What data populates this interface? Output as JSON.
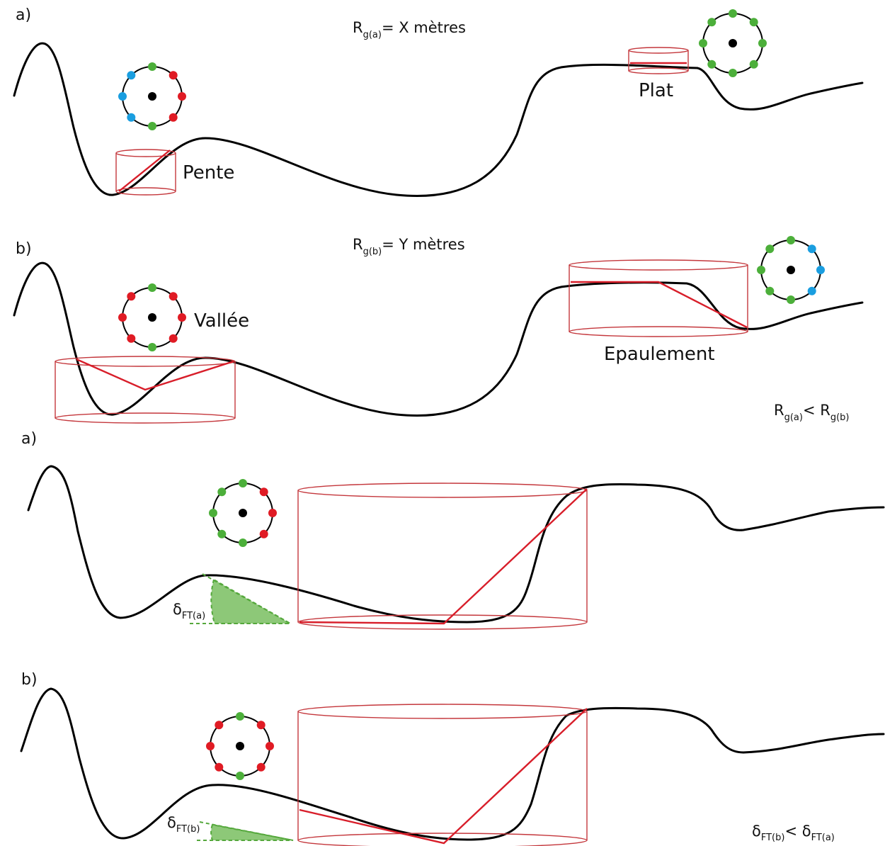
{
  "panel_labels": {
    "p1": "a)",
    "p2": "b)",
    "p3": "a)",
    "p4": "b)"
  },
  "equations": {
    "rga_main": "R",
    "rga_sub": "g(a)",
    "rga_rest": "= X mètres",
    "rgb_main": "R",
    "rgb_sub": "g(b)",
    "rgb_rest": "= Y mètres",
    "cmp_r1": "R",
    "cmp_s1": "g(a)",
    "cmp_op": "< R",
    "cmp_s2": "g(b)",
    "delta_a_main": "δ",
    "delta_a_sub": "FT(a)",
    "delta_b_main": "δ",
    "delta_b_sub": "FT(b)",
    "cmp_d1": "δ",
    "cmp_ds1": "FT(b)",
    "cmp_dop": "< δ",
    "cmp_ds2": "FT(a)"
  },
  "landform_labels": {
    "pente": "Pente",
    "plat": "Plat",
    "vallee": "Vallée",
    "epaulement": "Epaulement"
  },
  "colors": {
    "higher": "#e01b24",
    "equal": "#4caf3a",
    "lower": "#1a9ee0",
    "cylinder": "#c4373c",
    "angle": "#8dc878"
  },
  "neighbor_patterns": {
    "pente": [
      "equal",
      "higher",
      "higher",
      "higher",
      "equal",
      "lower",
      "lower",
      "lower"
    ],
    "plat": [
      "equal",
      "equal",
      "equal",
      "equal",
      "equal",
      "equal",
      "equal",
      "equal"
    ],
    "vallee": [
      "equal",
      "higher",
      "higher",
      "higher",
      "equal",
      "higher",
      "higher",
      "higher"
    ],
    "epaulement": [
      "equal",
      "lower",
      "lower",
      "lower",
      "equal",
      "equal",
      "equal",
      "equal"
    ],
    "panel3": [
      "equal",
      "higher",
      "higher",
      "higher",
      "equal",
      "equal",
      "equal",
      "equal"
    ],
    "panel4": [
      "equal",
      "higher",
      "higher",
      "higher",
      "equal",
      "higher",
      "higher",
      "higher"
    ]
  }
}
